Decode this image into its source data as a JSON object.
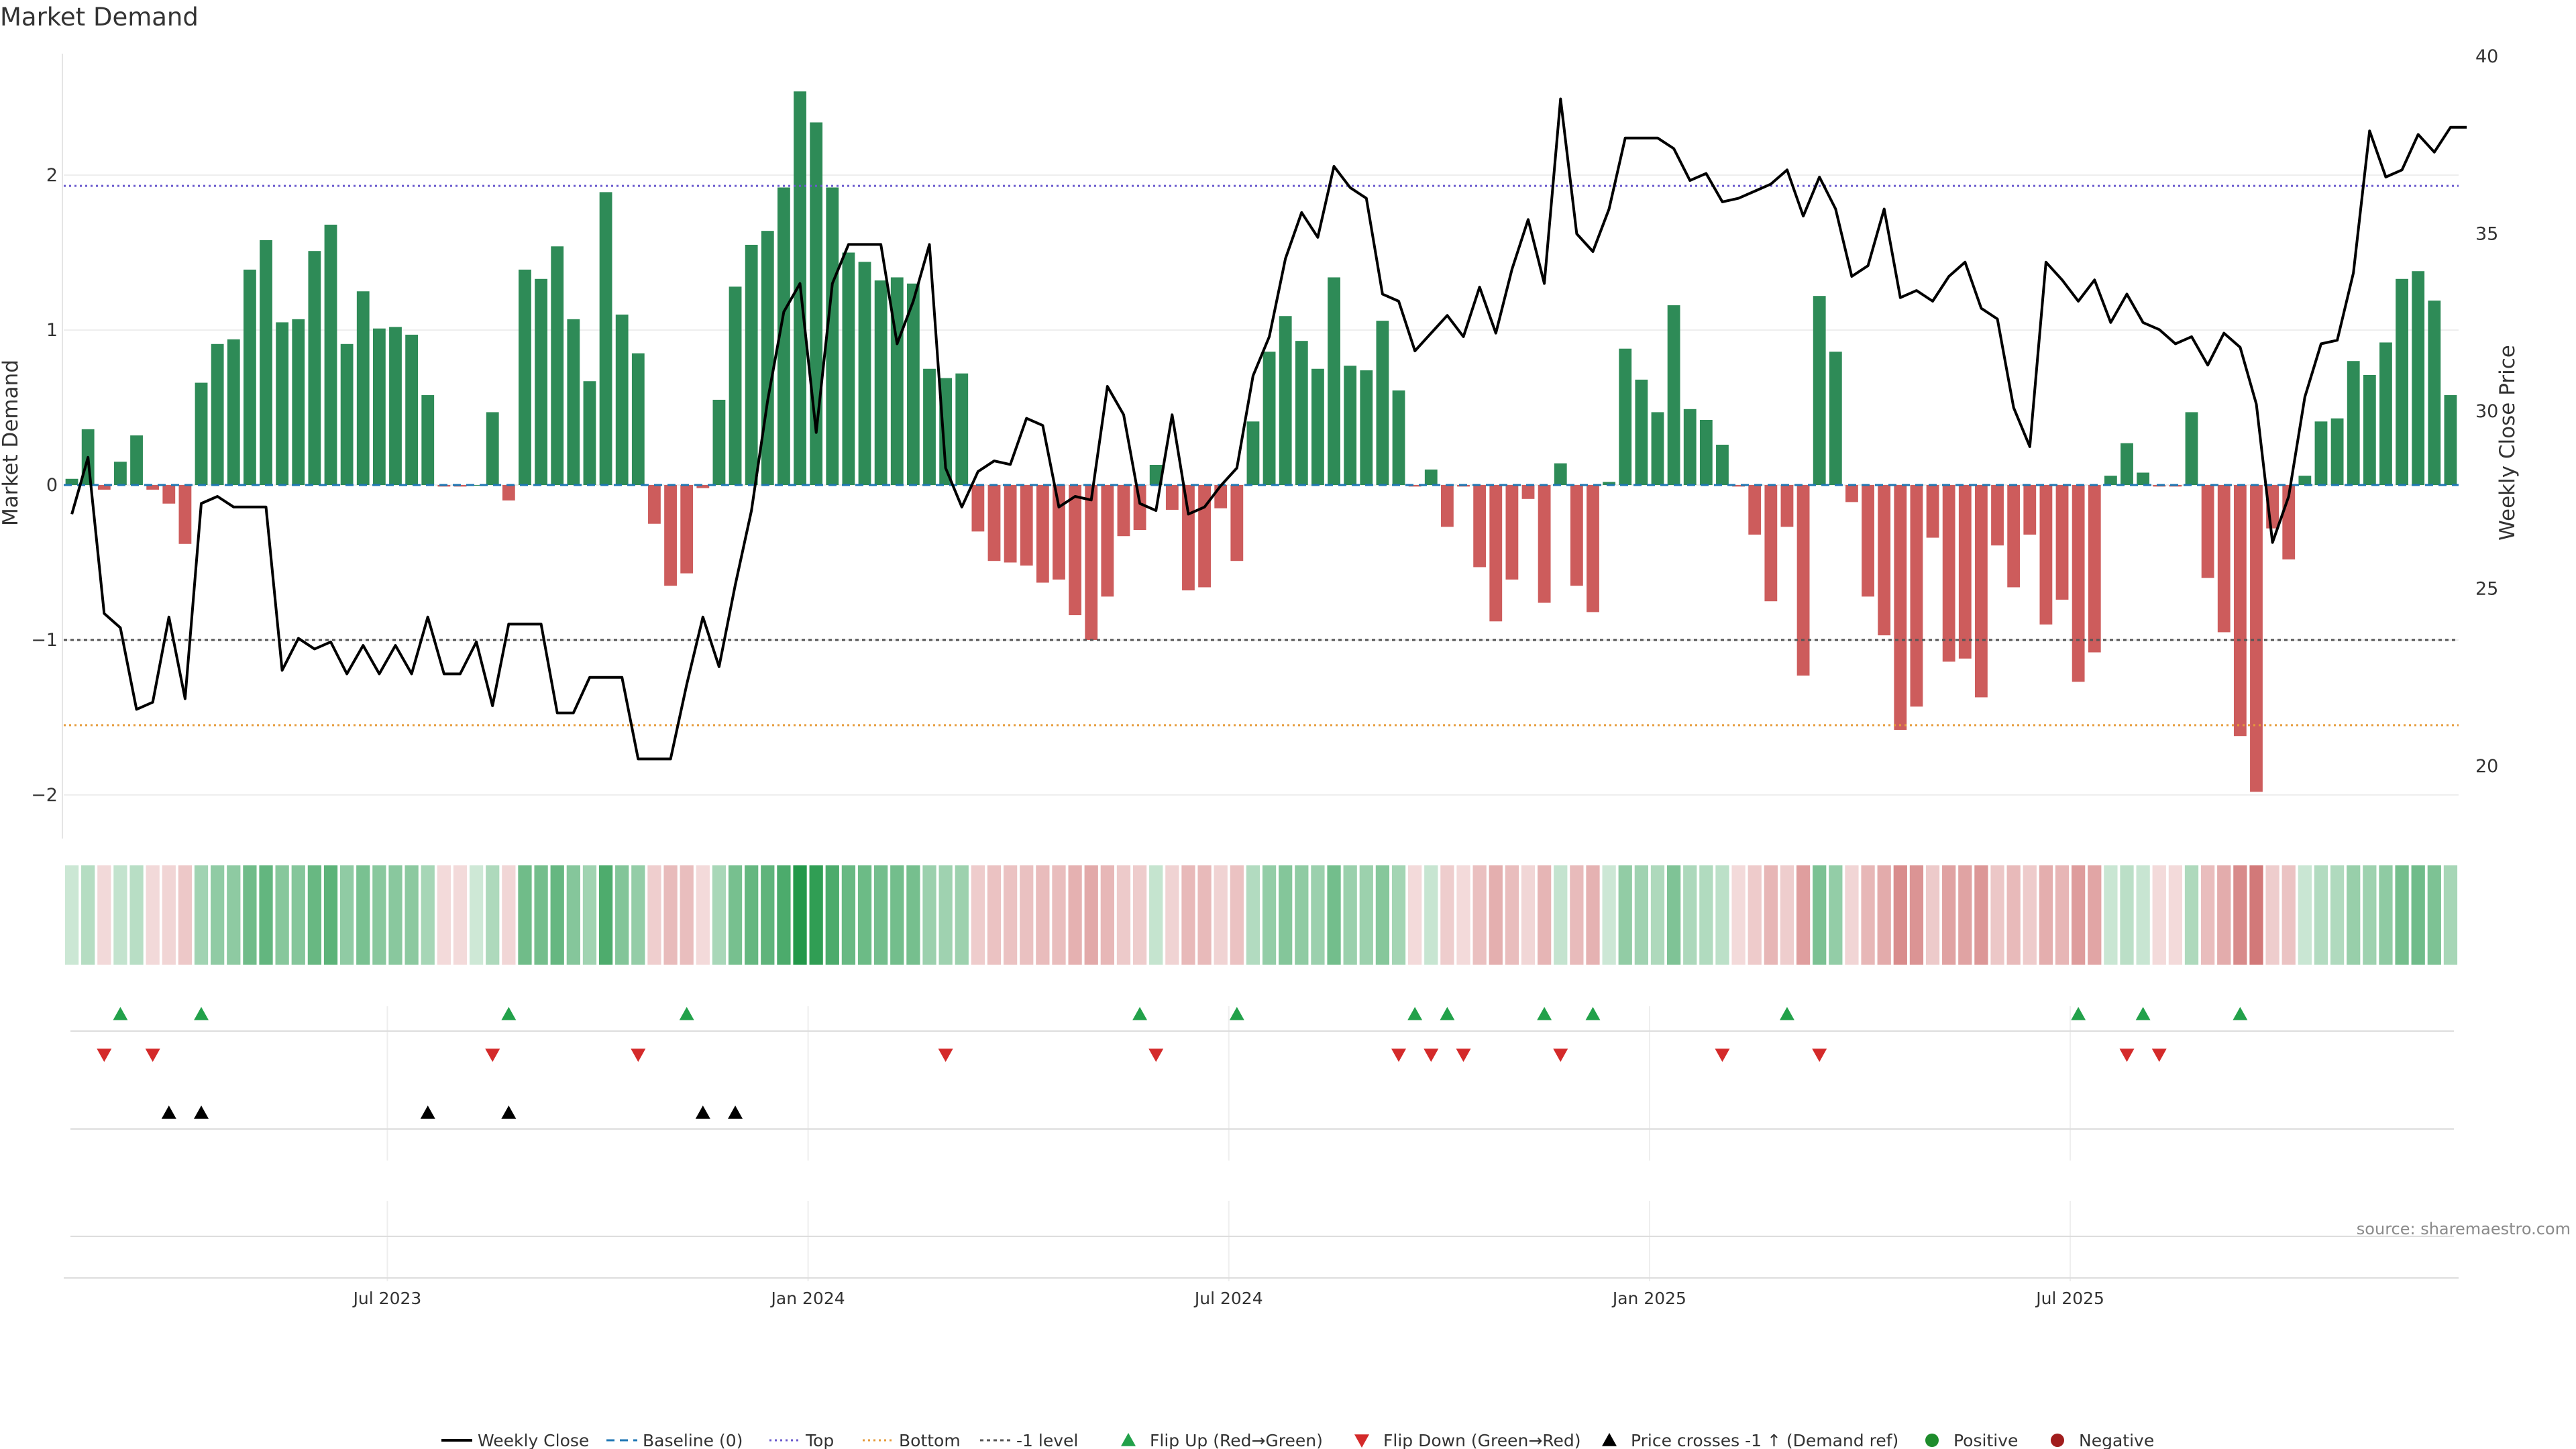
{
  "title": "Market Demand",
  "source": "source: sharemaestro.com",
  "colors": {
    "positive": "#2e8b57",
    "negative": "#cd5c5c",
    "price": "#000000",
    "baseline": "#1f77b4",
    "top": "#6a5acd",
    "bottom": "#e69b3a",
    "minus_one": "#555555",
    "flip_up": "#22a14a",
    "flip_down": "#d42a2a",
    "cross": "#000000",
    "positive_dot": "#1e8c2c",
    "negative_dot": "#a11d1d"
  },
  "chart_data": {
    "type": "bar",
    "title": "Market Demand",
    "ylabel": "Market Demand",
    "y2label": "Weekly Close Price",
    "ylim": [
      -2.2,
      2.8
    ],
    "y2lim": [
      18.5,
      40.5
    ],
    "yticks": [
      -2,
      -1,
      0,
      1,
      2
    ],
    "yticklabels": [
      "−2",
      "−1",
      "0",
      "1",
      "2"
    ],
    "y2ticks": [
      20,
      25,
      30,
      35,
      40
    ],
    "y2ticklabels": [
      "20",
      "25",
      "30",
      "35",
      "40"
    ],
    "xticklabels": [
      "Jul 2023",
      "Jan 2024",
      "Jul 2024",
      "Jan 2025",
      "Jul 2025"
    ],
    "xtick_positions": [
      20,
      46,
      72,
      98,
      124
    ],
    "reference_lines": {
      "top": 1.93,
      "bottom": -1.55,
      "minus_one": -1.0,
      "baseline": 0
    },
    "demand": [
      0.04,
      0.36,
      -0.03,
      0.15,
      0.32,
      -0.03,
      -0.12,
      -0.38,
      0.66,
      0.91,
      0.94,
      1.39,
      1.58,
      1.05,
      1.07,
      1.51,
      1.68,
      0.91,
      1.25,
      1.01,
      1.02,
      0.97,
      0.58,
      -0.01,
      -0.01,
      0.0,
      0.47,
      -0.1,
      1.39,
      1.33,
      1.54,
      1.07,
      0.67,
      1.89,
      1.1,
      0.85,
      -0.25,
      -0.65,
      -0.57,
      -0.02,
      0.55,
      1.28,
      1.55,
      1.64,
      1.92,
      2.54,
      2.34,
      1.92,
      1.5,
      1.44,
      1.32,
      1.34,
      1.3,
      0.75,
      0.69,
      0.72,
      -0.3,
      -0.49,
      -0.5,
      -0.52,
      -0.63,
      -0.61,
      -0.84,
      -1.0,
      -0.72,
      -0.33,
      -0.29,
      0.13,
      -0.16,
      -0.68,
      -0.66,
      -0.15,
      -0.49,
      0.41,
      0.86,
      1.09,
      0.93,
      0.75,
      1.34,
      0.77,
      0.74,
      1.06,
      0.61,
      -0.01,
      0.1,
      -0.27,
      -0.01,
      -0.53,
      -0.88,
      -0.61,
      -0.09,
      -0.76,
      0.14,
      -0.65,
      -0.82,
      0.02,
      0.88,
      0.68,
      0.47,
      1.16,
      0.49,
      0.42,
      0.26,
      -0.01,
      -0.32,
      -0.75,
      -0.27,
      -1.23,
      1.22,
      0.86,
      -0.11,
      -0.72,
      -0.97,
      -1.58,
      -1.43,
      -0.34,
      -1.14,
      -1.12,
      -1.37,
      -0.39,
      -0.66,
      -0.32,
      -0.9,
      -0.74,
      -1.27,
      -1.08,
      0.06,
      0.27,
      0.08,
      -0.01,
      -0.01,
      0.47,
      -0.6,
      -0.95,
      -1.62,
      -1.98,
      -0.28,
      -0.48,
      0.06,
      0.41,
      0.43,
      0.8,
      0.71,
      0.92,
      1.33,
      1.38,
      1.19,
      0.58
    ],
    "weekly_close": [
      27.1,
      28.7,
      24.3,
      23.9,
      21.6,
      21.8,
      24.2,
      21.9,
      27.4,
      27.6,
      27.3,
      27.3,
      27.3,
      22.7,
      23.6,
      23.3,
      23.5,
      22.6,
      23.4,
      22.6,
      23.4,
      22.6,
      24.2,
      22.6,
      22.6,
      23.5,
      21.7,
      24.0,
      24.0,
      24.0,
      21.5,
      21.5,
      22.5,
      22.5,
      22.5,
      20.2,
      20.2,
      20.2,
      22.3,
      24.2,
      22.8,
      25.1,
      27.2,
      30.3,
      32.8,
      33.6,
      29.4,
      33.6,
      34.7,
      34.7,
      34.7,
      31.9,
      33.1,
      34.7,
      28.4,
      27.3,
      28.3,
      28.6,
      28.5,
      29.8,
      29.6,
      27.3,
      27.6,
      27.5,
      30.7,
      29.9,
      27.4,
      27.2,
      29.9,
      27.1,
      27.3,
      27.9,
      28.4,
      31.0,
      32.1,
      34.3,
      35.6,
      34.9,
      36.9,
      36.3,
      36.0,
      33.3,
      33.1,
      31.7,
      32.2,
      32.7,
      32.1,
      33.5,
      32.2,
      34.0,
      35.4,
      33.6,
      38.8,
      35.0,
      34.5,
      35.7,
      37.7,
      37.7,
      37.7,
      37.4,
      36.5,
      36.7,
      35.9,
      36.0,
      36.2,
      36.4,
      36.8,
      35.5,
      36.6,
      35.7,
      33.8,
      34.1,
      35.7,
      33.2,
      33.4,
      33.1,
      33.8,
      34.2,
      32.9,
      32.6,
      30.1,
      29.0,
      34.2,
      33.7,
      33.1,
      33.7,
      32.5,
      33.3,
      32.5,
      32.3,
      31.9,
      32.1,
      31.3,
      32.2,
      31.8,
      30.2,
      26.3,
      27.6,
      30.4,
      31.9,
      32.0,
      33.9,
      37.9,
      36.6,
      36.8,
      37.8,
      37.3,
      38.0,
      38.0
    ],
    "flip_up": [
      3,
      8,
      27,
      38,
      66,
      72,
      83,
      85,
      91,
      94,
      106,
      124,
      128,
      134
    ],
    "flip_down": [
      2,
      5,
      26,
      35,
      54,
      67,
      82,
      84,
      86,
      92,
      102,
      108,
      127,
      129
    ],
    "price_cross_up": [
      6,
      8,
      22,
      27,
      39,
      41
    ],
    "legend": [
      "Weekly Close",
      "Baseline (0)",
      "Top",
      "Bottom",
      "-1 level",
      "Flip Up (Red→Green)",
      "Flip Down (Green→Red)",
      "Price crosses -1 ↑ (Demand ref)",
      "Positive",
      "Negative"
    ]
  }
}
